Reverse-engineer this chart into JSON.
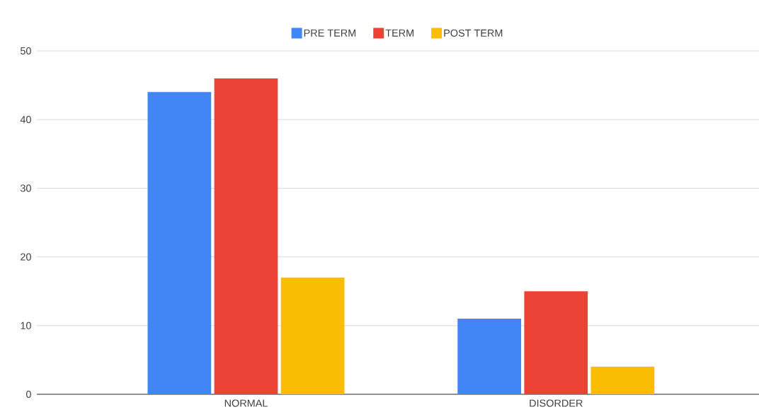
{
  "chart_data": {
    "type": "bar",
    "categories": [
      "NORMAL",
      "DISORDER"
    ],
    "series": [
      {
        "name": "PRE TERM",
        "color": "#4285f4",
        "values": [
          44,
          11
        ]
      },
      {
        "name": "TERM",
        "color": "#ea4335",
        "values": [
          46,
          15
        ]
      },
      {
        "name": "POST TERM",
        "color": "#fbbc04",
        "values": [
          17,
          4
        ]
      }
    ],
    "ylim": [
      0,
      50
    ],
    "yticks": [
      0,
      10,
      20,
      30,
      40,
      50
    ],
    "grid": "y",
    "legend": "top"
  }
}
